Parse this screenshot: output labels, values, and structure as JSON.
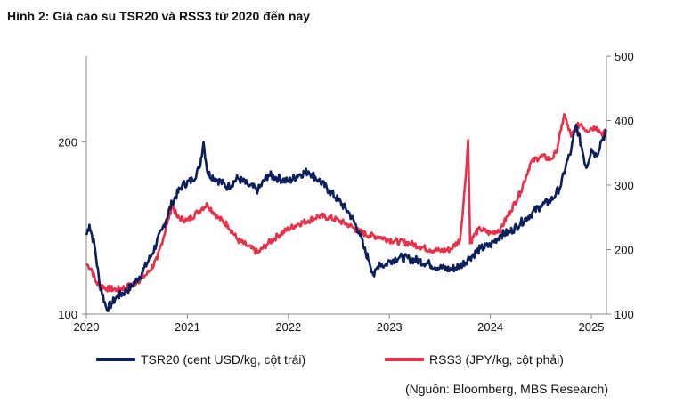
{
  "title": "Hình 2: Giá cao su TSR20 và RSS3 từ 2020 đến nay",
  "source": "(Nguồn: Bloomberg, MBS Research)",
  "colors": {
    "tsr20": "#0b1f5c",
    "rss3": "#e8304a",
    "axis": "#888888"
  },
  "chart_data": {
    "type": "line",
    "title": "Hình 2: Giá cao su TSR20 và RSS3 từ 2020 đến nay",
    "xlabel": "",
    "x_ticks": [
      "2020",
      "2021",
      "2022",
      "2023",
      "2024",
      "2025"
    ],
    "x_range": [
      2020.0,
      2025.15
    ],
    "left_axis": {
      "label": "",
      "ylim": [
        100,
        250
      ],
      "ticks": [
        "100",
        "200"
      ],
      "tick_values": [
        100,
        200
      ]
    },
    "right_axis": {
      "label": "",
      "ylim": [
        100,
        500
      ],
      "ticks": [
        "100",
        "200",
        "300",
        "400",
        "500"
      ],
      "tick_values": [
        100,
        200,
        300,
        400,
        500
      ]
    },
    "series": [
      {
        "name": "TSR20 (cent USD/kg, cột trái)",
        "axis": "left",
        "x": [
          2020.0,
          2020.03,
          2020.08,
          2020.13,
          2020.2,
          2020.25,
          2020.3,
          2020.38,
          2020.45,
          2020.55,
          2020.65,
          2020.75,
          2020.85,
          2020.95,
          2021.05,
          2021.12,
          2021.16,
          2021.2,
          2021.3,
          2021.4,
          2021.5,
          2021.6,
          2021.7,
          2021.8,
          2021.9,
          2022.0,
          2022.1,
          2022.2,
          2022.3,
          2022.4,
          2022.5,
          2022.6,
          2022.7,
          2022.75,
          2022.8,
          2022.85,
          2022.9,
          2022.95,
          2023.0,
          2023.1,
          2023.2,
          2023.3,
          2023.4,
          2023.5,
          2023.6,
          2023.7,
          2023.8,
          2023.9,
          2024.0,
          2024.1,
          2024.2,
          2024.3,
          2024.4,
          2024.5,
          2024.6,
          2024.65,
          2024.7,
          2024.75,
          2024.8,
          2024.85,
          2024.9,
          2024.95,
          2025.0,
          2025.05,
          2025.1,
          2025.15
        ],
        "y": [
          146,
          152,
          140,
          118,
          103,
          106,
          110,
          113,
          116,
          124,
          135,
          149,
          165,
          175,
          178,
          185,
          200,
          182,
          178,
          174,
          179,
          175,
          172,
          181,
          179,
          177,
          181,
          183,
          178,
          172,
          166,
          159,
          148,
          138,
          131,
          122,
          130,
          128,
          131,
          133,
          132,
          131,
          129,
          127,
          126,
          128,
          133,
          138,
          140,
          146,
          148,
          153,
          158,
          163,
          166,
          170,
          175,
          187,
          195,
          210,
          198,
          185,
          196,
          192,
          201,
          206
        ]
      },
      {
        "name": "RSS3 (JPY/kg, cột phải)",
        "axis": "right",
        "x": [
          2020.0,
          2020.05,
          2020.1,
          2020.2,
          2020.3,
          2020.4,
          2020.5,
          2020.6,
          2020.7,
          2020.8,
          2020.85,
          2020.9,
          2021.0,
          2021.1,
          2021.15,
          2021.2,
          2021.3,
          2021.4,
          2021.5,
          2021.6,
          2021.7,
          2021.8,
          2021.9,
          2022.0,
          2022.1,
          2022.2,
          2022.3,
          2022.4,
          2022.5,
          2022.6,
          2022.7,
          2022.8,
          2022.9,
          2023.0,
          2023.1,
          2023.2,
          2023.3,
          2023.4,
          2023.5,
          2023.6,
          2023.7,
          2023.75,
          2023.78,
          2023.8,
          2023.85,
          2023.9,
          2024.0,
          2024.1,
          2024.2,
          2024.3,
          2024.4,
          2024.5,
          2024.6,
          2024.65,
          2024.7,
          2024.73,
          2024.76,
          2024.8,
          2024.85,
          2024.9,
          2024.95,
          2025.0,
          2025.05,
          2025.1,
          2025.15
        ],
        "y": [
          178,
          170,
          148,
          140,
          138,
          142,
          150,
          162,
          185,
          240,
          270,
          250,
          245,
          258,
          265,
          270,
          250,
          238,
          215,
          205,
          195,
          210,
          222,
          232,
          240,
          245,
          252,
          250,
          245,
          238,
          228,
          222,
          220,
          215,
          212,
          210,
          205,
          200,
          198,
          200,
          215,
          300,
          370,
          210,
          225,
          232,
          225,
          232,
          260,
          290,
          335,
          345,
          340,
          350,
          385,
          410,
          395,
          375,
          390,
          395,
          385,
          388,
          390,
          380,
          382
        ]
      }
    ]
  }
}
